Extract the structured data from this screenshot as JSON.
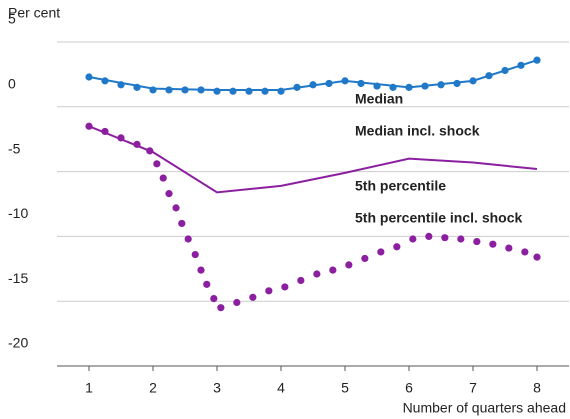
{
  "chart_data": {
    "type": "line",
    "ylabel": "Per cent",
    "xlabel": "Number of quarters ahead",
    "xlim": [
      0.5,
      8.5
    ],
    "xticks": [
      1,
      2,
      3,
      4,
      5,
      6,
      7,
      8
    ],
    "ylim": [
      -20,
      5
    ],
    "yticks": [
      -20,
      -15,
      -10,
      -5,
      0,
      5
    ],
    "grid": true,
    "series": [
      {
        "name": "Median",
        "color": "#1f78c8",
        "style": "solid",
        "x": [
          1,
          2,
          3,
          4,
          5,
          6,
          7,
          8
        ],
        "values": [
          2.3,
          1.4,
          1.3,
          1.3,
          2.0,
          1.5,
          2.0,
          3.6
        ]
      },
      {
        "name": "Median incl. shock",
        "color": "#1f78c8",
        "style": "dotted",
        "x": [
          1,
          1.25,
          1.5,
          1.75,
          2,
          2.25,
          2.5,
          2.75,
          3,
          3.25,
          3.5,
          3.75,
          4,
          4.25,
          4.5,
          4.75,
          5,
          5.25,
          5.5,
          5.75,
          6,
          6.25,
          6.5,
          6.75,
          7,
          7.25,
          7.5,
          7.75,
          8
        ],
        "values": [
          2.3,
          2.0,
          1.7,
          1.5,
          1.3,
          1.3,
          1.3,
          1.3,
          1.2,
          1.2,
          1.2,
          1.2,
          1.2,
          1.5,
          1.7,
          1.8,
          2.0,
          1.8,
          1.6,
          1.5,
          1.5,
          1.6,
          1.7,
          1.8,
          2.0,
          2.4,
          2.8,
          3.2,
          3.6
        ]
      },
      {
        "name": "5th percentile",
        "color": "#8b1fa0",
        "style": "solid",
        "x": [
          1,
          2,
          3,
          4,
          5,
          6,
          7,
          8
        ],
        "values": [
          -1.5,
          -3.5,
          -6.6,
          -6.1,
          -5.1,
          -4.0,
          -4.3,
          -4.8
        ]
      },
      {
        "name": "5th percentile incl. shock",
        "color": "#8b1fa0",
        "style": "dotted",
        "x": [
          1,
          1.25,
          1.5,
          1.75,
          1.95,
          2.06,
          2.16,
          2.25,
          2.36,
          2.45,
          2.55,
          2.66,
          2.75,
          2.84,
          2.95,
          3.06,
          3.31,
          3.56,
          3.81,
          4.06,
          4.31,
          4.56,
          4.81,
          5.06,
          5.31,
          5.56,
          5.81,
          6.06,
          6.31,
          6.56,
          6.81,
          7.06,
          7.31,
          7.56,
          7.81,
          8
        ],
        "values": [
          -1.5,
          -1.9,
          -2.4,
          -2.9,
          -3.4,
          -4.4,
          -5.5,
          -6.7,
          -7.8,
          -9.0,
          -10.2,
          -11.4,
          -12.6,
          -13.7,
          -14.8,
          -15.5,
          -15.1,
          -14.7,
          -14.2,
          -13.9,
          -13.4,
          -12.9,
          -12.6,
          -12.2,
          -11.7,
          -11.2,
          -10.8,
          -10.2,
          -10.0,
          -10.1,
          -10.2,
          -10.4,
          -10.6,
          -10.9,
          -11.2,
          -11.6
        ]
      }
    ]
  }
}
